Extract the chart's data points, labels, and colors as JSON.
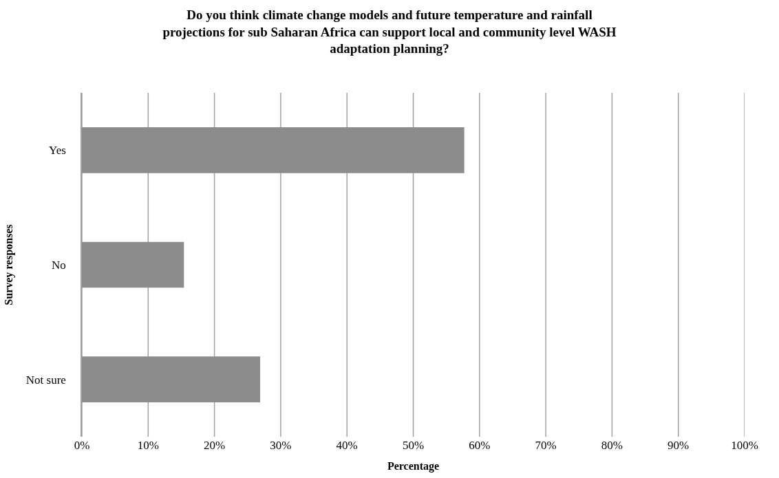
{
  "chart_data": {
    "type": "bar",
    "orientation": "horizontal",
    "title": "Do you think climate change models and future temperature and rainfall projections for sub Saharan Africa can support local and community level WASH adaptation planning?",
    "xlabel": "Percentage",
    "ylabel": "Survey responses",
    "categories": [
      "Yes",
      "No",
      "Not sure"
    ],
    "values": [
      57.7,
      15.4,
      26.9
    ],
    "color": "#8c8c8c",
    "xlim": [
      0,
      100
    ],
    "xticks": [
      {
        "value": 0,
        "label": "0%"
      },
      {
        "value": 10,
        "label": "10%"
      },
      {
        "value": 20,
        "label": "20%"
      },
      {
        "value": 30,
        "label": "30%"
      },
      {
        "value": 40,
        "label": "40%"
      },
      {
        "value": 50,
        "label": "50%"
      },
      {
        "value": 60,
        "label": "60%"
      },
      {
        "value": 70,
        "label": "70%"
      },
      {
        "value": 80,
        "label": "80%"
      },
      {
        "value": 90,
        "label": "90%"
      },
      {
        "value": 100,
        "label": "100%"
      }
    ],
    "grid": "x"
  }
}
